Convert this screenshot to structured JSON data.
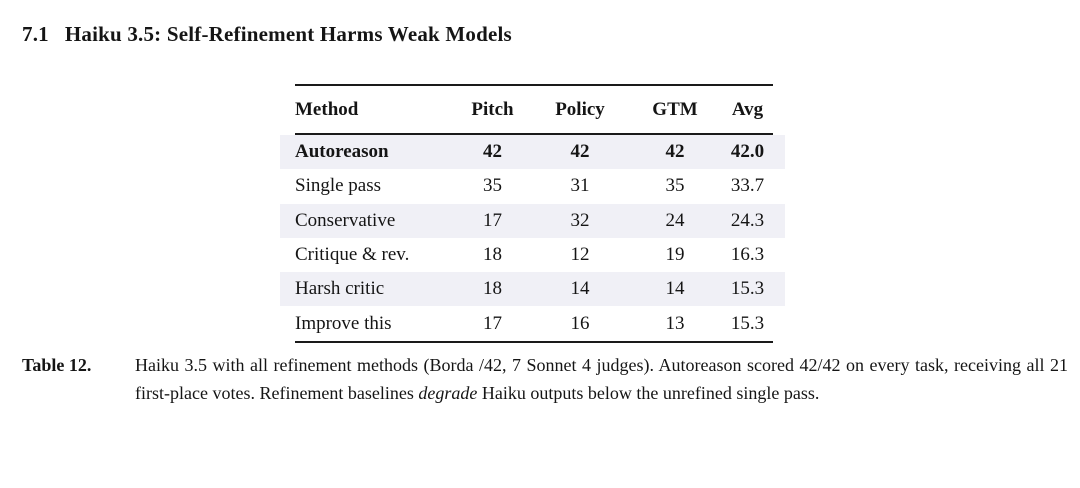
{
  "heading": {
    "number": "7.1",
    "title": "Haiku 3.5: Self-Refinement Harms Weak Models"
  },
  "table": {
    "columns": [
      "Method",
      "Pitch",
      "Policy",
      "GTM",
      "Avg"
    ],
    "rows": [
      {
        "method": "Autoreason",
        "pitch": "42",
        "policy": "42",
        "gtm": "42",
        "avg": "42.0",
        "bold": true
      },
      {
        "method": "Single pass",
        "pitch": "35",
        "policy": "31",
        "gtm": "35",
        "avg": "33.7",
        "bold": false
      },
      {
        "method": "Conservative",
        "pitch": "17",
        "policy": "32",
        "gtm": "24",
        "avg": "24.3",
        "bold": false
      },
      {
        "method": "Critique & rev.",
        "pitch": "18",
        "policy": "12",
        "gtm": "19",
        "avg": "16.3",
        "bold": false
      },
      {
        "method": "Harsh critic",
        "pitch": "18",
        "policy": "14",
        "gtm": "14",
        "avg": "15.3",
        "bold": false
      },
      {
        "method": "Improve this",
        "pitch": "17",
        "policy": "16",
        "gtm": "13",
        "avg": "15.3",
        "bold": false
      }
    ]
  },
  "caption": {
    "label": "Table 12.",
    "text_before_italic": "Haiku 3.5 with all refinement methods (Borda /42, 7 Sonnet 4 judges). Autoreason scored 42/42 on every task, receiving all 21 first-place votes. Refinement baselines ",
    "italic": "degrade",
    "text_after_italic": " Haiku outputs below the unrefined single pass."
  },
  "colors": {
    "stripe": "#f0f0f6",
    "rule": "#1a1a1a",
    "text": "#151515",
    "background": "#ffffff"
  }
}
